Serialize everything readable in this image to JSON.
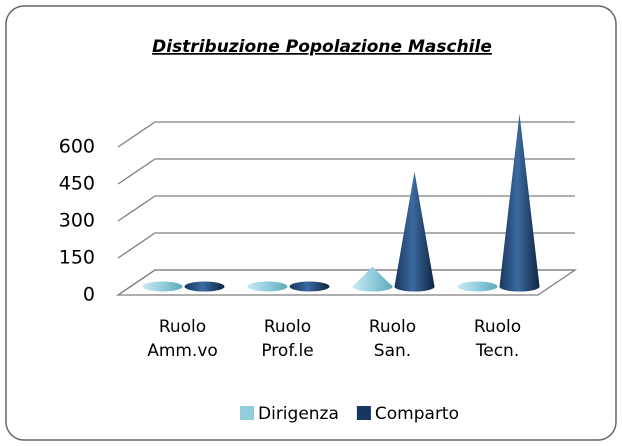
{
  "chart_data": {
    "type": "bar",
    "style": "cone3d",
    "title": "Distribuzione Popolazione Maschile",
    "categories": [
      [
        "Ruolo",
        "Amm.vo"
      ],
      [
        "Ruolo",
        "Prof.le"
      ],
      [
        "Ruolo",
        "San."
      ],
      [
        "Ruolo",
        "Tecn."
      ]
    ],
    "series": [
      {
        "name": "Dirigenza",
        "color": "#92cddc",
        "values": [
          0,
          0,
          80,
          0
        ]
      },
      {
        "name": "Comparto",
        "color": "#17375e",
        "values": [
          12,
          0,
          465,
          700
        ]
      }
    ],
    "ylim": [
      0,
      750
    ],
    "yticks": [
      0,
      150,
      300,
      450,
      600
    ],
    "grid": true,
    "legend": "bottom"
  }
}
